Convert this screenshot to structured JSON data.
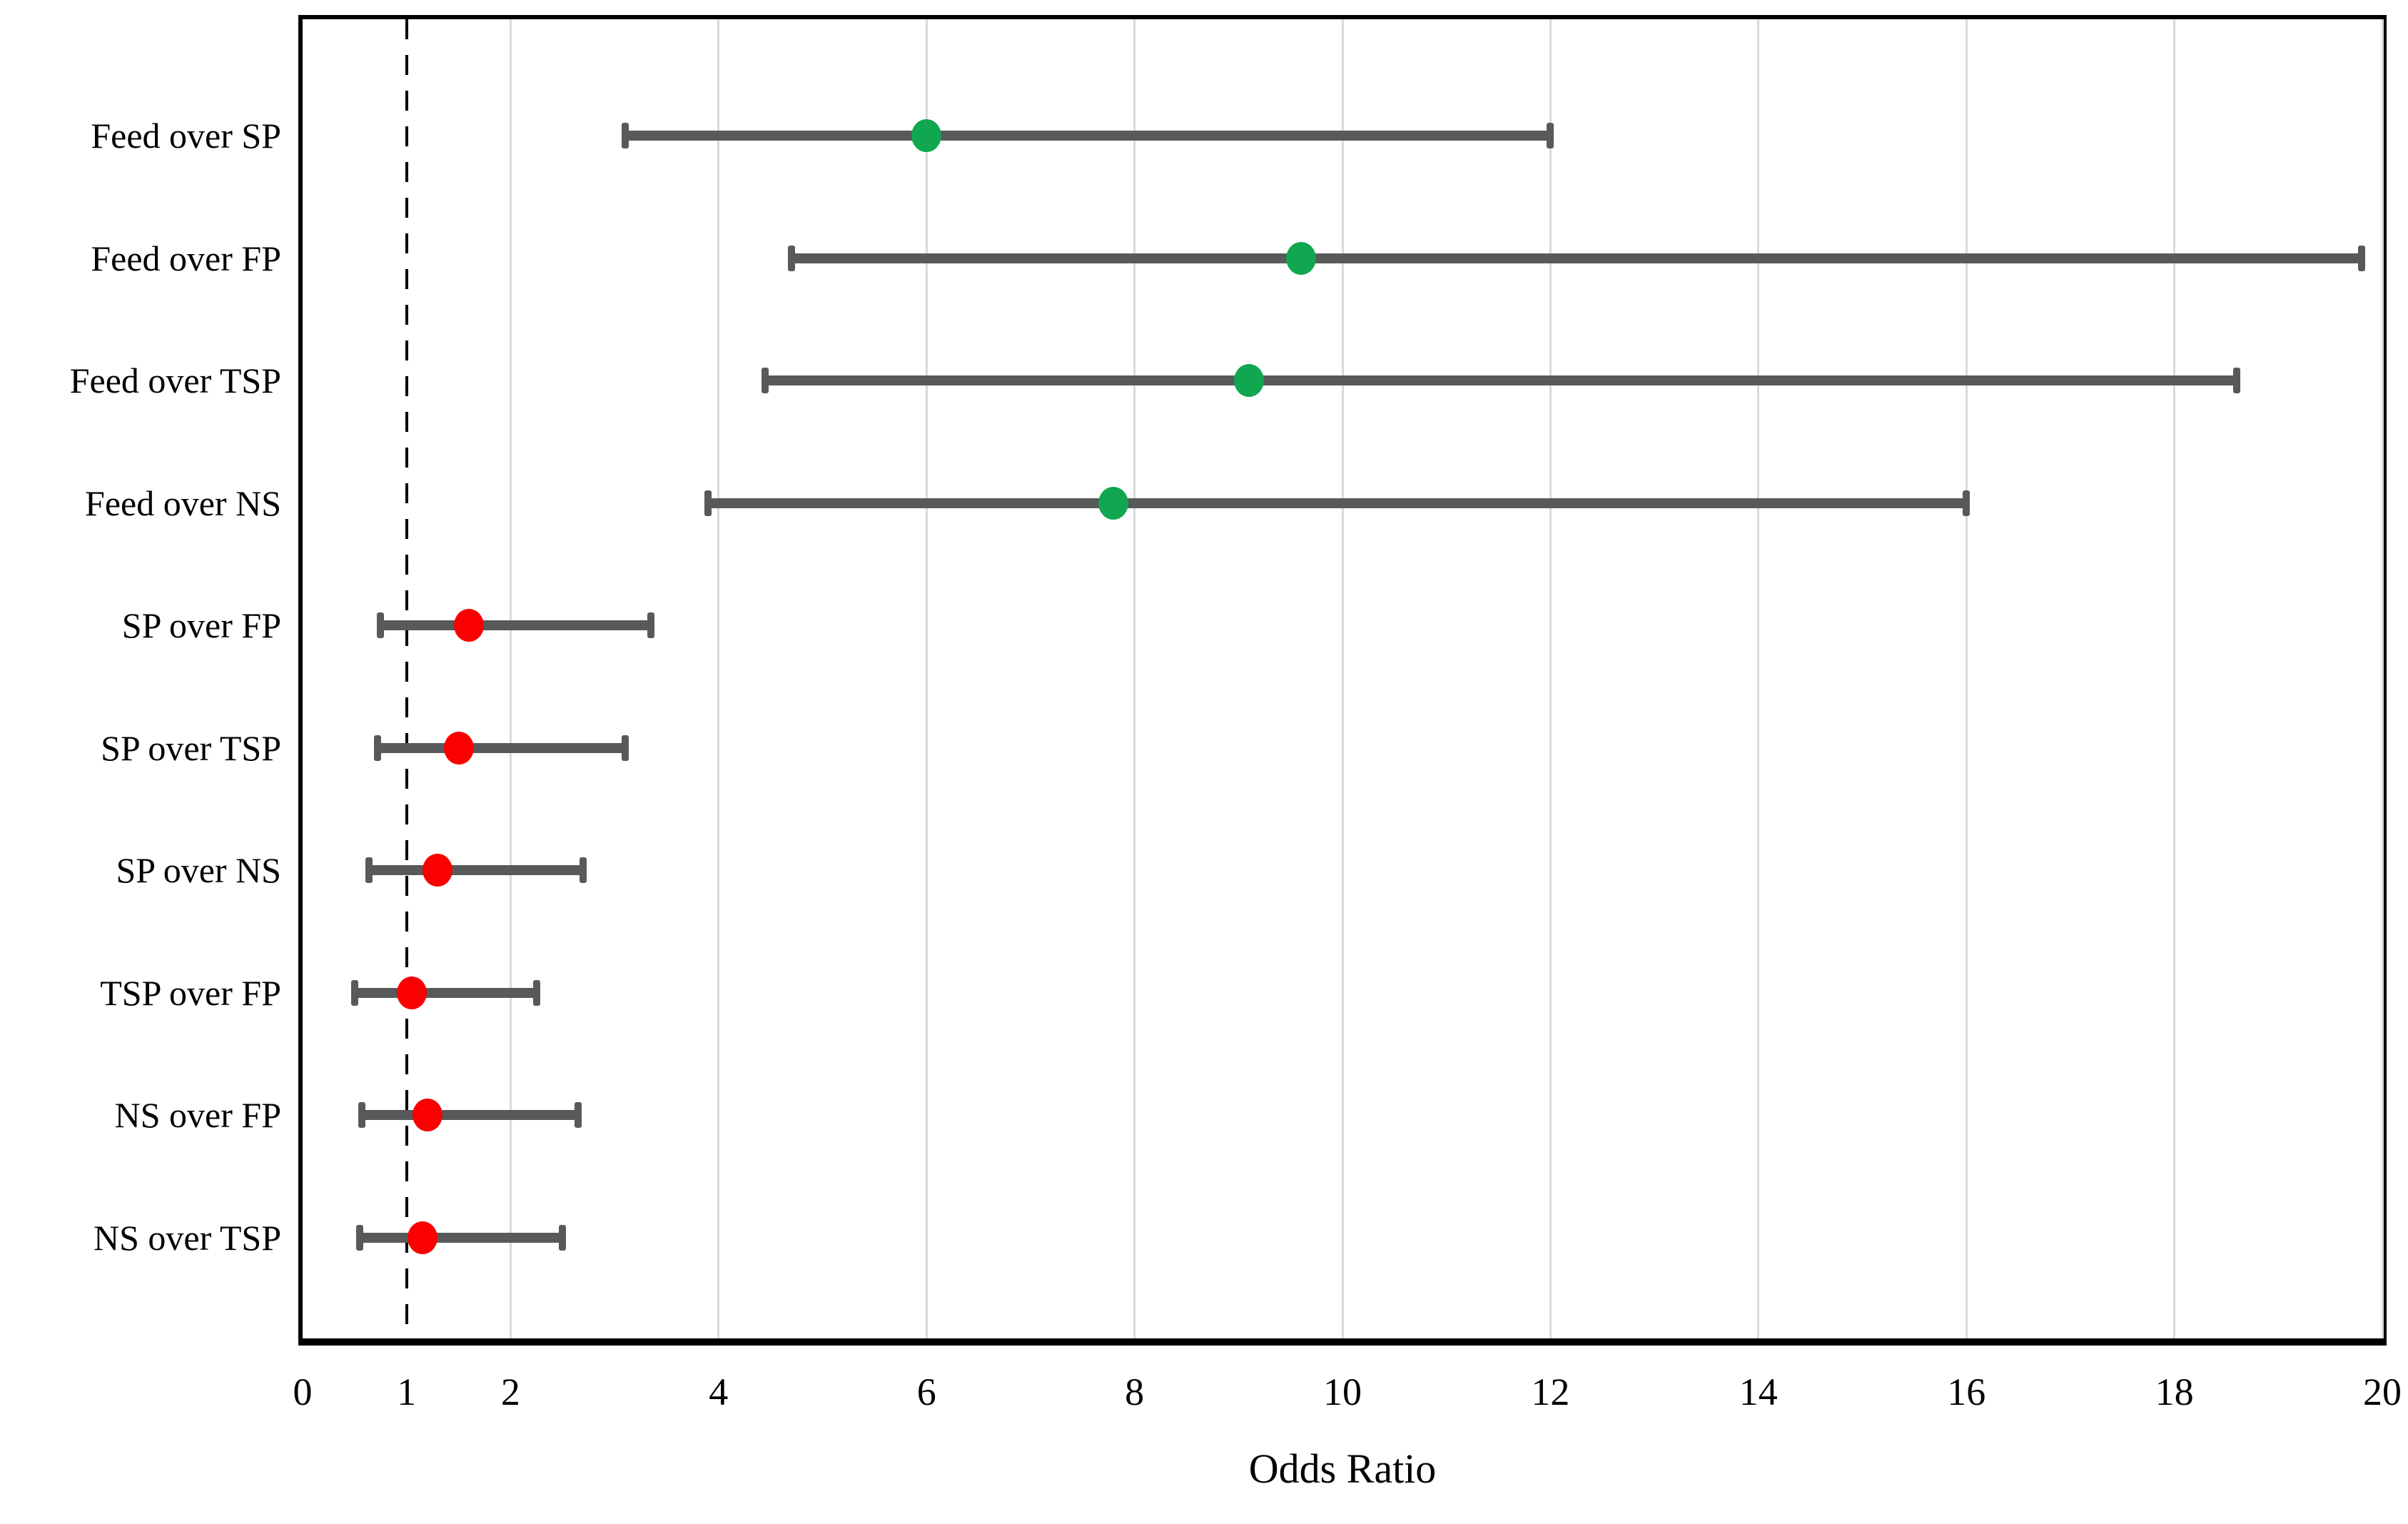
{
  "chart_data": {
    "type": "scatter",
    "variant": "forest-plot",
    "title": "",
    "xlabel": "Odds Ratio",
    "ylabel": "",
    "xlim": [
      0,
      20
    ],
    "x_ticks": [
      0,
      1,
      2,
      4,
      6,
      8,
      10,
      12,
      14,
      16,
      18,
      20
    ],
    "gridlines_x": [
      2,
      4,
      6,
      8,
      10,
      12,
      14,
      16,
      18,
      20
    ],
    "reference_line_x": 1,
    "grid": "vertical-only",
    "legend_position": "none",
    "rows": [
      {
        "label": "Feed over SP",
        "or": 6.0,
        "ci_low": 3.1,
        "ci_high": 12.0,
        "color_key": "significant"
      },
      {
        "label": "Feed over FP",
        "or": 9.6,
        "ci_low": 4.7,
        "ci_high": 19.8,
        "color_key": "significant"
      },
      {
        "label": "Feed over TSP",
        "or": 9.1,
        "ci_low": 4.45,
        "ci_high": 18.6,
        "color_key": "significant"
      },
      {
        "label": "Feed over NS",
        "or": 7.8,
        "ci_low": 3.9,
        "ci_high": 16.0,
        "color_key": "significant"
      },
      {
        "label": "SP over FP",
        "or": 1.6,
        "ci_low": 0.75,
        "ci_high": 3.35,
        "color_key": "non_significant"
      },
      {
        "label": "SP over TSP",
        "or": 1.5,
        "ci_low": 0.72,
        "ci_high": 3.1,
        "color_key": "non_significant"
      },
      {
        "label": "SP over NS",
        "or": 1.3,
        "ci_low": 0.64,
        "ci_high": 2.7,
        "color_key": "non_significant"
      },
      {
        "label": "TSP over FP",
        "or": 1.05,
        "ci_low": 0.5,
        "ci_high": 2.25,
        "color_key": "non_significant"
      },
      {
        "label": "NS over FP",
        "or": 1.2,
        "ci_low": 0.57,
        "ci_high": 2.65,
        "color_key": "non_significant"
      },
      {
        "label": "NS over TSP",
        "or": 1.15,
        "ci_low": 0.55,
        "ci_high": 2.5,
        "color_key": "non_significant"
      }
    ],
    "colors": {
      "significant": "#10A750",
      "non_significant": "#FA0000",
      "ci_bar": "#58595B",
      "gridline": "#DADADA",
      "reference_line": "#000000",
      "border": "#000000"
    }
  }
}
